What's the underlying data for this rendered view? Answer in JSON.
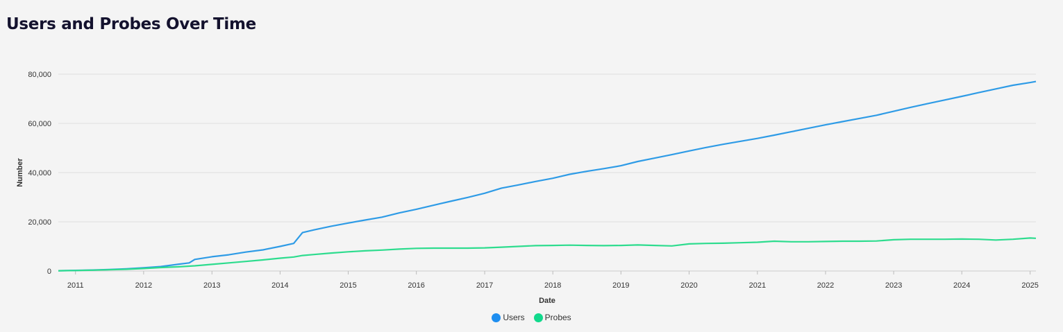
{
  "chart_data": {
    "type": "line",
    "title": "Users and Probes Over Time",
    "xlabel": "Date",
    "ylabel": "Number",
    "xlim": [
      "2010-10-01",
      "2025-02-01"
    ],
    "ylim": [
      0,
      80000
    ],
    "x_ticks": [
      "2011",
      "2012",
      "2013",
      "2014",
      "2015",
      "2016",
      "2017",
      "2018",
      "2019",
      "2020",
      "2021",
      "2022",
      "2023",
      "2024",
      "2025"
    ],
    "y_ticks": [
      {
        "value": 0,
        "label": "0"
      },
      {
        "value": 20000,
        "label": "20,000"
      },
      {
        "value": 40000,
        "label": "40,000"
      },
      {
        "value": 60000,
        "label": "60,000"
      },
      {
        "value": 80000,
        "label": "80,000"
      }
    ],
    "grid": true,
    "legend_position": "bottom-center",
    "series": [
      {
        "name": "Users",
        "color": "#2e9be6",
        "legend_color": "#1e8ef0",
        "points": [
          [
            "2010-10-01",
            100
          ],
          [
            "2011-01-01",
            250
          ],
          [
            "2011-04-01",
            400
          ],
          [
            "2011-07-01",
            600
          ],
          [
            "2011-10-01",
            900
          ],
          [
            "2012-01-01",
            1300
          ],
          [
            "2012-04-01",
            1800
          ],
          [
            "2012-07-01",
            2700
          ],
          [
            "2012-09-01",
            3300
          ],
          [
            "2012-10-01",
            4700
          ],
          [
            "2013-01-01",
            5800
          ],
          [
            "2013-04-01",
            6600
          ],
          [
            "2013-07-01",
            7700
          ],
          [
            "2013-10-01",
            8600
          ],
          [
            "2014-01-01",
            10000
          ],
          [
            "2014-03-15",
            11200
          ],
          [
            "2014-05-01",
            15600
          ],
          [
            "2014-07-01",
            16700
          ],
          [
            "2014-10-01",
            18200
          ],
          [
            "2015-01-01",
            19500
          ],
          [
            "2015-04-01",
            20700
          ],
          [
            "2015-07-01",
            21900
          ],
          [
            "2015-10-01",
            23600
          ],
          [
            "2016-01-01",
            25100
          ],
          [
            "2016-04-01",
            26700
          ],
          [
            "2016-07-01",
            28300
          ],
          [
            "2016-10-01",
            29900
          ],
          [
            "2017-01-01",
            31600
          ],
          [
            "2017-04-01",
            33700
          ],
          [
            "2017-07-01",
            35000
          ],
          [
            "2017-10-01",
            36400
          ],
          [
            "2018-01-01",
            37700
          ],
          [
            "2018-04-01",
            39300
          ],
          [
            "2018-07-01",
            40500
          ],
          [
            "2018-10-01",
            41600
          ],
          [
            "2019-01-01",
            42800
          ],
          [
            "2019-04-01",
            44500
          ],
          [
            "2019-07-01",
            45900
          ],
          [
            "2019-10-01",
            47300
          ],
          [
            "2020-01-01",
            48800
          ],
          [
            "2020-04-01",
            50200
          ],
          [
            "2020-07-01",
            51500
          ],
          [
            "2020-10-01",
            52700
          ],
          [
            "2021-01-01",
            53900
          ],
          [
            "2021-04-01",
            55200
          ],
          [
            "2021-07-01",
            56600
          ],
          [
            "2021-10-01",
            58000
          ],
          [
            "2022-01-01",
            59400
          ],
          [
            "2022-04-01",
            60700
          ],
          [
            "2022-07-01",
            62000
          ],
          [
            "2022-10-01",
            63300
          ],
          [
            "2023-01-01",
            64900
          ],
          [
            "2023-04-01",
            66500
          ],
          [
            "2023-07-01",
            68000
          ],
          [
            "2023-10-01",
            69500
          ],
          [
            "2024-01-01",
            71000
          ],
          [
            "2024-04-01",
            72500
          ],
          [
            "2024-07-01",
            74000
          ],
          [
            "2024-10-01",
            75500
          ],
          [
            "2025-01-01",
            76600
          ],
          [
            "2025-02-01",
            77000
          ]
        ]
      },
      {
        "name": "Probes",
        "color": "#2ddc8e",
        "legend_color": "#11d98c",
        "points": [
          [
            "2010-10-01",
            100
          ],
          [
            "2011-01-01",
            200
          ],
          [
            "2011-04-01",
            350
          ],
          [
            "2011-07-01",
            500
          ],
          [
            "2011-10-01",
            700
          ],
          [
            "2012-01-01",
            1000
          ],
          [
            "2012-04-01",
            1400
          ],
          [
            "2012-07-01",
            1700
          ],
          [
            "2012-10-01",
            2100
          ],
          [
            "2013-01-01",
            2700
          ],
          [
            "2013-04-01",
            3300
          ],
          [
            "2013-07-01",
            3900
          ],
          [
            "2013-10-01",
            4500
          ],
          [
            "2014-01-01",
            5200
          ],
          [
            "2014-03-15",
            5700
          ],
          [
            "2014-05-01",
            6300
          ],
          [
            "2014-07-01",
            6700
          ],
          [
            "2014-10-01",
            7300
          ],
          [
            "2015-01-01",
            7800
          ],
          [
            "2015-04-01",
            8200
          ],
          [
            "2015-07-01",
            8500
          ],
          [
            "2015-10-01",
            8900
          ],
          [
            "2016-01-01",
            9200
          ],
          [
            "2016-04-01",
            9300
          ],
          [
            "2016-07-01",
            9300
          ],
          [
            "2016-10-01",
            9300
          ],
          [
            "2017-01-01",
            9400
          ],
          [
            "2017-04-01",
            9700
          ],
          [
            "2017-07-01",
            10000
          ],
          [
            "2017-10-01",
            10300
          ],
          [
            "2018-01-01",
            10400
          ],
          [
            "2018-04-01",
            10500
          ],
          [
            "2018-07-01",
            10400
          ],
          [
            "2018-10-01",
            10300
          ],
          [
            "2019-01-01",
            10400
          ],
          [
            "2019-04-01",
            10600
          ],
          [
            "2019-07-01",
            10400
          ],
          [
            "2019-10-01",
            10200
          ],
          [
            "2020-01-01",
            11000
          ],
          [
            "2020-04-01",
            11200
          ],
          [
            "2020-07-01",
            11300
          ],
          [
            "2020-10-01",
            11500
          ],
          [
            "2021-01-01",
            11700
          ],
          [
            "2021-04-01",
            12100
          ],
          [
            "2021-07-01",
            11900
          ],
          [
            "2021-10-01",
            11900
          ],
          [
            "2022-01-01",
            12000
          ],
          [
            "2022-04-01",
            12100
          ],
          [
            "2022-07-01",
            12100
          ],
          [
            "2022-10-01",
            12200
          ],
          [
            "2023-01-01",
            12700
          ],
          [
            "2023-04-01",
            12900
          ],
          [
            "2023-07-01",
            12900
          ],
          [
            "2023-10-01",
            12900
          ],
          [
            "2024-01-01",
            13000
          ],
          [
            "2024-04-01",
            12900
          ],
          [
            "2024-07-01",
            12600
          ],
          [
            "2024-10-01",
            12900
          ],
          [
            "2025-01-01",
            13400
          ],
          [
            "2025-02-01",
            13300
          ]
        ]
      }
    ]
  }
}
